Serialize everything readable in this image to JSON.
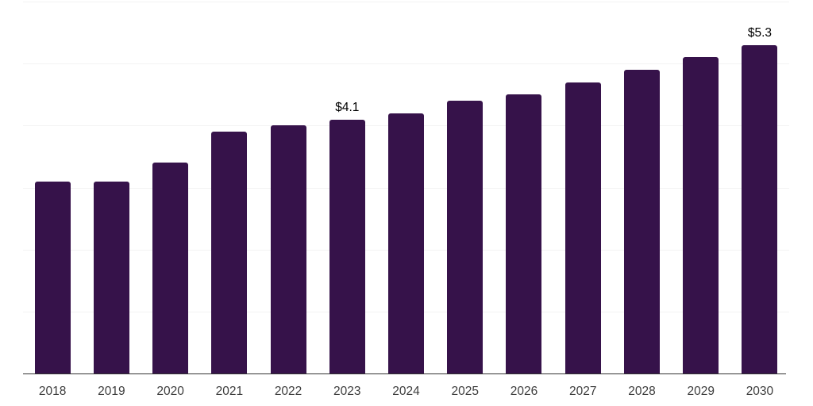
{
  "chart_data": {
    "type": "bar",
    "title": "",
    "xlabel": "",
    "ylabel": "",
    "categories": [
      "2018",
      "2019",
      "2020",
      "2021",
      "2022",
      "2023",
      "2024",
      "2025",
      "2026",
      "2027",
      "2028",
      "2029",
      "2030"
    ],
    "values": [
      3.1,
      3.1,
      3.4,
      3.9,
      4.0,
      4.1,
      4.2,
      4.4,
      4.5,
      4.7,
      4.9,
      5.1,
      5.3
    ],
    "data_labels": {
      "2023": "$4.1",
      "2030": "$5.3"
    },
    "ylim": [
      0,
      6
    ],
    "gridline_step": 1,
    "grid": true,
    "legend": false,
    "y_axis_tick_labels_visible": false,
    "colors": {
      "bar": "#36124a",
      "data_label": "#000000",
      "tick_label": "#3d3d3d",
      "gridline": "#f3f3f3",
      "axis_line": "#333333",
      "background": "#ffffff"
    }
  }
}
